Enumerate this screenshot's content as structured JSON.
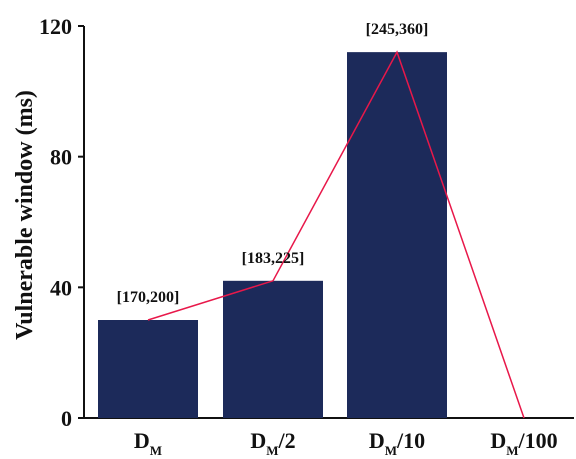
{
  "chart_data": {
    "type": "bar",
    "categories": [
      {
        "main": "D",
        "sub": "M",
        "suffix": ""
      },
      {
        "main": "D",
        "sub": "M",
        "suffix": "/2"
      },
      {
        "main": "D",
        "sub": "M",
        "suffix": "/10"
      },
      {
        "main": "D",
        "sub": "M",
        "suffix": "/100"
      }
    ],
    "values": [
      30,
      42,
      112,
      0
    ],
    "data_labels": [
      "[170,200]",
      "[183,225]",
      "[245,360]",
      ""
    ],
    "ylabel": "Vulnerable window (ms)",
    "xlabel": "",
    "title": "",
    "ylim": [
      0,
      120
    ],
    "yticks": [
      0,
      40,
      80,
      120
    ],
    "grid": false,
    "bar_color": "#1c2a5a",
    "line_color": "#e8184a",
    "connecting_line": true
  }
}
